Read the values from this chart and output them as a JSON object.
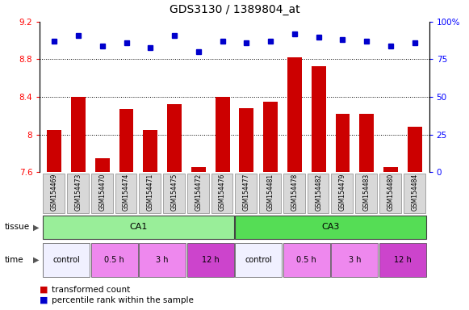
{
  "title": "GDS3130 / 1389804_at",
  "samples": [
    "GSM154469",
    "GSM154473",
    "GSM154470",
    "GSM154474",
    "GSM154471",
    "GSM154475",
    "GSM154472",
    "GSM154476",
    "GSM154477",
    "GSM154481",
    "GSM154478",
    "GSM154482",
    "GSM154479",
    "GSM154483",
    "GSM154480",
    "GSM154484"
  ],
  "bar_values": [
    8.05,
    8.4,
    7.75,
    8.27,
    8.05,
    8.32,
    7.65,
    8.4,
    8.28,
    8.35,
    8.82,
    8.73,
    8.22,
    8.22,
    7.65,
    8.08
  ],
  "dot_values": [
    87,
    91,
    84,
    86,
    83,
    91,
    80,
    87,
    86,
    87,
    92,
    90,
    88,
    87,
    84,
    86
  ],
  "ylim_left": [
    7.6,
    9.2
  ],
  "ylim_right": [
    0,
    100
  ],
  "yticks_left": [
    7.6,
    8.0,
    8.4,
    8.8,
    9.2
  ],
  "yticks_right": [
    0,
    25,
    50,
    75,
    100
  ],
  "ytick_labels_left": [
    "7.6",
    "8",
    "8.4",
    "8.8",
    "9.2"
  ],
  "ytick_labels_right": [
    "0",
    "25",
    "50",
    "75",
    "100%"
  ],
  "bar_color": "#cc0000",
  "dot_color": "#0000cc",
  "grid_lines": [
    8.0,
    8.4,
    8.8
  ],
  "ca1_color": "#99ee99",
  "ca3_color": "#55dd55",
  "control_color": "#f0f0ff",
  "time_05h_color": "#ee88ee",
  "time_3h_color": "#ee88ee",
  "time_12h_color": "#cc44cc",
  "bg_color": "#ffffff",
  "legend_bar_label": "transformed count",
  "legend_dot_label": "percentile rank within the sample",
  "tissue_label": "tissue",
  "time_label": "time",
  "fig_width": 5.81,
  "fig_height": 3.84,
  "dpi": 100
}
